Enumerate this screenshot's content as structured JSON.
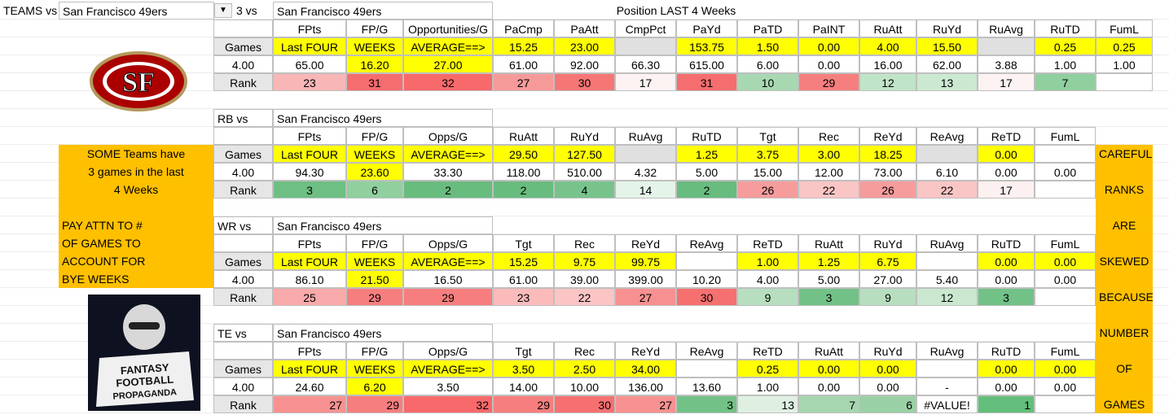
{
  "header": {
    "label": "TEAMS vs",
    "team": "San Francisco 49ers"
  },
  "logo": {
    "text": "SF"
  },
  "badge": {
    "lines": [
      "FANTASY",
      "FOOTBALL",
      "PROPAGANDA"
    ]
  },
  "left_note": {
    "top": [
      "SOME Teams have",
      "3 games in the last",
      "4 Weeks"
    ],
    "bottom": [
      "PAY ATTN TO #",
      "OF GAMES TO",
      "ACCOUNT FOR",
      "BYE WEEKS"
    ]
  },
  "right_note": {
    "words": [
      "CAREFUL!",
      "RANKS",
      "ARE",
      "SKEWED",
      "BECAUSE",
      "NUMBER",
      "OF",
      "GAMES"
    ]
  },
  "sections": [
    {
      "label": "3 vs",
      "team": "San Francisco 49ers",
      "title": "Position LAST  4 Weeks",
      "headers": [
        "FPts",
        "FP/G",
        "Opportunities/G",
        "PaCmp",
        "PaAtt",
        "CmpPct",
        "PaYd",
        "PaTD",
        "PaINT",
        "RuAtt",
        "RuYd",
        "RuAvg",
        "RuTD",
        "FumL"
      ],
      "games": [
        "Games",
        "Last FOUR",
        "WEEKS",
        "AVERAGE==>",
        "15.25",
        "23.00",
        null,
        "153.75",
        "1.50",
        "0.00",
        "4.00",
        "15.50",
        null,
        "0.25",
        "0.25"
      ],
      "games_colors": [
        "#e7e6e6",
        "#ffff00",
        "#ffff00",
        "#ffff00",
        "#ffff00",
        "#ffff00",
        "#e0e0e0",
        "#ffff00",
        "#ffff00",
        "#ffff00",
        "#ffff00",
        "#ffff00",
        "#e0e0e0",
        "#ffff00",
        "#ffff00"
      ],
      "totals": [
        "4.00",
        "65.00",
        "16.20",
        "27.00",
        "61.00",
        "92.00",
        "66.30",
        "615.00",
        "6.00",
        "0.00",
        "16.00",
        "62.00",
        "3.88",
        "1.00",
        "1.00"
      ],
      "totals_colors": [
        "#ffffff",
        "#ffffff",
        "#ffff00",
        "#ffff00",
        "#ffffff",
        "#ffffff",
        "#ffffff",
        "#ffffff",
        "#ffffff",
        "#ffffff",
        "#ffffff",
        "#ffffff",
        "#ffffff",
        "#ffffff",
        "#ffffff"
      ],
      "ranks": [
        "Rank",
        "23",
        "31",
        "32",
        "27",
        "30",
        "17",
        "31",
        "10",
        "29",
        "12",
        "13",
        "17",
        "7",
        null
      ],
      "rank_colors": [
        "#e7e6e6",
        "#f9b6b6",
        "#f56d6f",
        "#f8696b",
        "#f79a9a",
        "#f67676",
        "#fdf2f2",
        "#f56d6f",
        "#a8d8b2",
        "#f57f7f",
        "#c0e4c7",
        "#cbe9d1",
        "#fdf2f2",
        "#90cf9e",
        "#ffffff"
      ],
      "rank_align": "center"
    },
    {
      "label": "RB vs",
      "team": "San Francisco 49ers",
      "headers": [
        "FPts",
        "FP/G",
        "Opps/G",
        "RuAtt",
        "RuYd",
        "RuAvg",
        "RuTD",
        "Tgt",
        "Rec",
        "ReYd",
        "ReAvg",
        "ReTD",
        "FumL"
      ],
      "games": [
        "Games",
        "Last FOUR",
        "WEEKS",
        "AVERAGE==>",
        "29.50",
        "127.50",
        null,
        "1.25",
        "3.75",
        "3.00",
        "18.25",
        null,
        "0.00",
        null
      ],
      "games_colors": [
        "#e7e6e6",
        "#ffff00",
        "#ffff00",
        "#ffff00",
        "#ffff00",
        "#ffff00",
        "#e0e0e0",
        "#ffff00",
        "#ffff00",
        "#ffff00",
        "#ffff00",
        "#e0e0e0",
        "#ffff00",
        "#ffffff"
      ],
      "totals": [
        "4.00",
        "94.30",
        "23.60",
        "33.30",
        "118.00",
        "510.00",
        "4.32",
        "5.00",
        "15.00",
        "12.00",
        "73.00",
        "6.10",
        "0.00",
        "0.00"
      ],
      "totals_colors": [
        "#ffffff",
        "#ffffff",
        "#ffff00",
        "#ffffff",
        "#ffffff",
        "#ffffff",
        "#ffffff",
        "#ffffff",
        "#ffffff",
        "#ffffff",
        "#ffffff",
        "#ffffff",
        "#ffffff",
        "#ffffff"
      ],
      "ranks": [
        "Rank",
        "3",
        "6",
        "2",
        "2",
        "4",
        "14",
        "2",
        "26",
        "22",
        "26",
        "22",
        "17",
        null
      ],
      "rank_colors": [
        "#e7e6e6",
        "#6dbf83",
        "#90cf9e",
        "#68bc7e",
        "#68bc7e",
        "#78c38c",
        "#e5f4e8",
        "#68bc7e",
        "#f79c9c",
        "#fac5c5",
        "#f79c9c",
        "#fac5c5",
        "#fdf0f0",
        "#ffffff"
      ],
      "rank_align": "center"
    },
    {
      "label": "WR vs",
      "team": "San Francisco 49ers",
      "headers": [
        "FPts",
        "FP/G",
        "Opps/G",
        "Tgt",
        "Rec",
        "ReYd",
        "ReAvg",
        "ReTD",
        "RuAtt",
        "RuYd",
        "RuAvg",
        "RuTD",
        "FumL"
      ],
      "games": [
        "Games",
        "Last FOUR",
        "WEEKS",
        "AVERAGE==>",
        "15.25",
        "9.75",
        "99.75",
        null,
        "1.00",
        "1.25",
        "6.75",
        null,
        "0.00",
        "0.00"
      ],
      "games_colors": [
        "#e7e6e6",
        "#ffff00",
        "#ffff00",
        "#ffff00",
        "#ffff00",
        "#ffff00",
        "#ffff00",
        "#ffffff",
        "#ffff00",
        "#ffff00",
        "#ffff00",
        "#ffffff",
        "#ffff00",
        "#ffff00"
      ],
      "totals": [
        "4.00",
        "86.10",
        "21.50",
        "16.50",
        "61.00",
        "39.00",
        "399.00",
        "10.20",
        "4.00",
        "5.00",
        "27.00",
        "5.40",
        "0.00",
        "0.00"
      ],
      "totals_colors": [
        "#ffffff",
        "#ffffff",
        "#ffff00",
        "#ffffff",
        "#ffffff",
        "#ffffff",
        "#ffffff",
        "#ffffff",
        "#ffffff",
        "#ffffff",
        "#ffffff",
        "#ffffff",
        "#ffffff",
        "#ffffff"
      ],
      "ranks": [
        "Rank",
        "25",
        "29",
        "29",
        "23",
        "22",
        "27",
        "30",
        "9",
        "3",
        "9",
        "12",
        "3",
        null
      ],
      "rank_colors": [
        "#e7e6e6",
        "#f9aaaa",
        "#f67e7e",
        "#f67e7e",
        "#fbbbbb",
        "#fbc5c5",
        "#f79191",
        "#f67070",
        "#b7dfbf",
        "#72c187",
        "#b7dfbf",
        "#c9e8cf",
        "#72c187",
        "#ffffff"
      ],
      "rank_align": "center"
    },
    {
      "label": "TE vs",
      "team": "San Francisco 49ers",
      "headers": [
        "FPts",
        "FP/G",
        "Opps/G",
        "Tgt",
        "Rec",
        "ReYd",
        "ReAvg",
        "ReTD",
        "RuAtt",
        "RuYd",
        "RuAvg",
        "RuTD",
        "FumL"
      ],
      "games": [
        "Games",
        "Last FOUR",
        "WEEKS",
        "AVERAGE==>",
        "3.50",
        "2.50",
        "34.00",
        null,
        "0.25",
        "0.00",
        "0.00",
        null,
        "0.00",
        "0.00"
      ],
      "games_colors": [
        "#e7e6e6",
        "#ffff00",
        "#ffff00",
        "#ffff00",
        "#ffff00",
        "#ffff00",
        "#ffff00",
        "#ffffff",
        "#ffff00",
        "#ffff00",
        "#ffff00",
        "#ffffff",
        "#ffff00",
        "#ffff00"
      ],
      "totals": [
        "4.00",
        "24.60",
        "6.20",
        "3.50",
        "14.00",
        "10.00",
        "136.00",
        "13.60",
        "1.00",
        "0.00",
        "0.00",
        "-",
        "0.00",
        "0.00"
      ],
      "totals_colors": [
        "#ffffff",
        "#ffffff",
        "#ffff00",
        "#ffffff",
        "#ffffff",
        "#ffffff",
        "#ffffff",
        "#ffffff",
        "#ffffff",
        "#ffffff",
        "#ffffff",
        "#ffffff",
        "#ffffff",
        "#ffffff"
      ],
      "ranks": [
        "Rank",
        "27",
        "29",
        "32",
        "29",
        "30",
        "27",
        "3",
        "13",
        "7",
        "6",
        "#VALUE!",
        "1",
        null
      ],
      "rank_colors": [
        "#e7e6e6",
        "#f79191",
        "#f67e7e",
        "#f8696b",
        "#f67e7e",
        "#f67070",
        "#f79191",
        "#72c187",
        "#dff0e2",
        "#a6d6b0",
        "#99d1a5",
        "#ffffff",
        "#63be7b",
        "#ffffff"
      ],
      "rank_align": "right"
    }
  ]
}
